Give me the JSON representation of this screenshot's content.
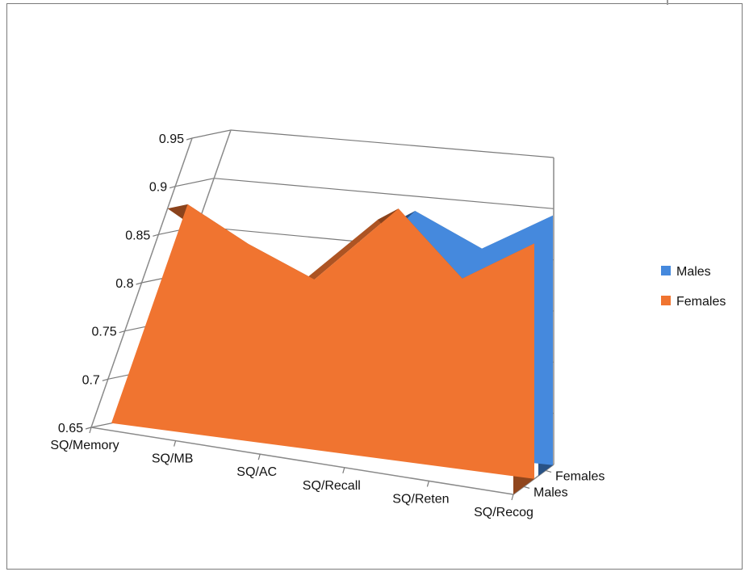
{
  "chart_data": {
    "type": "area",
    "variant": "3d",
    "title": "",
    "xlabel": "",
    "ylabel": "",
    "categories": [
      "SQ/Memory",
      "SQ/MB",
      "SQ/AC",
      "SQ/Recall",
      "SQ/Reten",
      "SQ/Recog"
    ],
    "series": [
      {
        "name": "Males",
        "values": [
          0.756,
          0.822,
          0.799,
          0.886,
          0.855,
          0.894
        ],
        "color": "#4589DD"
      },
      {
        "name": "Females",
        "values": [
          0.877,
          0.845,
          0.818,
          0.898,
          0.837,
          0.88
        ],
        "color": "#F07430"
      }
    ],
    "y_ticks": [
      "0.65",
      "0.7",
      "0.75",
      "0.8",
      "0.85",
      "0.9",
      "0.95"
    ],
    "depth_labels": [
      "Females",
      "Males"
    ],
    "ylim": [
      0.65,
      0.95
    ],
    "grid": "horizontal",
    "legend_position": "right"
  }
}
